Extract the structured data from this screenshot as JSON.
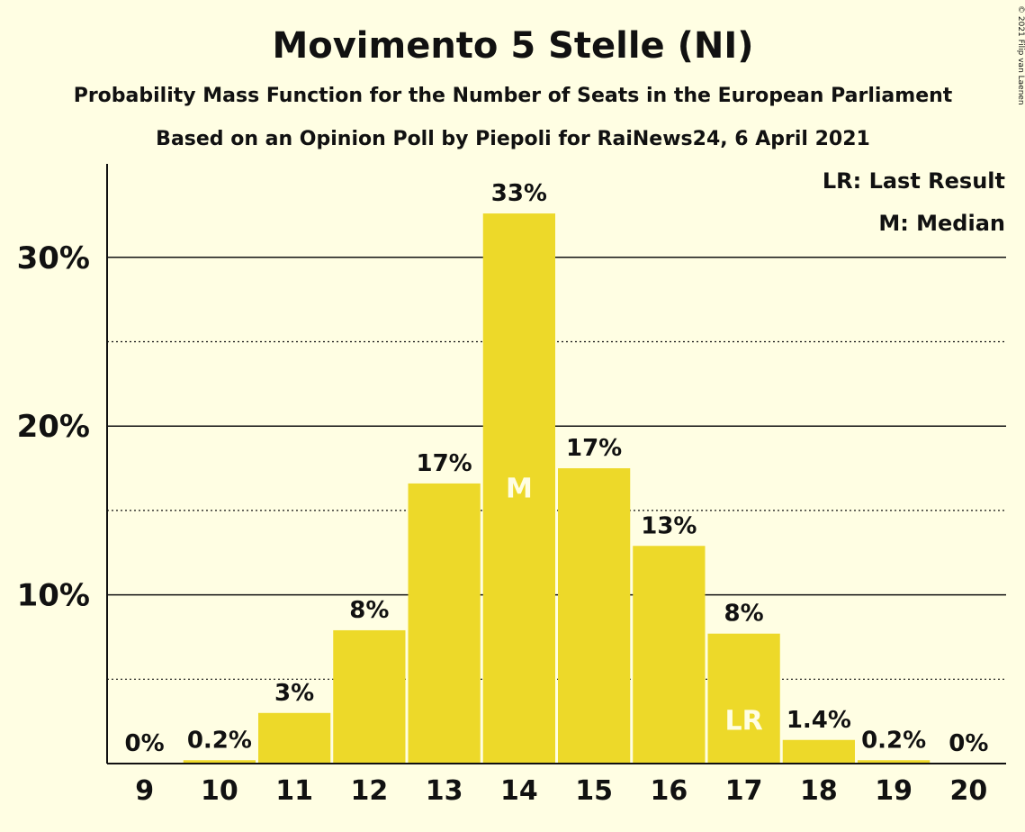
{
  "chart_data": {
    "type": "bar",
    "title": "Movimento 5 Stelle (NI)",
    "subtitle": "Probability Mass Function for the Number of Seats in the European Parliament",
    "subtitle2": "Based on an Opinion Poll by Piepoli for RaiNews24, 6 April 2021",
    "copyright": "© 2021 Filip van Laenen",
    "legend": [
      "LR: Last Result",
      "M: Median"
    ],
    "legend_position": "top-right",
    "categories": [
      "9",
      "10",
      "11",
      "12",
      "13",
      "14",
      "15",
      "16",
      "17",
      "18",
      "19",
      "20"
    ],
    "values": [
      0,
      0.2,
      3.0,
      7.9,
      16.6,
      32.6,
      17.5,
      12.9,
      7.7,
      1.4,
      0.2,
      0
    ],
    "data_labels": [
      "0%",
      "0.2%",
      "3%",
      "8%",
      "17%",
      "33%",
      "17%",
      "13%",
      "8%",
      "1.4%",
      "0.2%",
      "0%"
    ],
    "bar_annotations": [
      {
        "category": "14",
        "text": "M"
      },
      {
        "category": "17",
        "text": "LR"
      }
    ],
    "y_ticks": [
      10,
      20,
      30
    ],
    "y_tick_labels": [
      "10%",
      "20%",
      "30%"
    ],
    "y_minor_ticks": [
      5,
      15,
      25
    ],
    "ylim": [
      0,
      35.5
    ],
    "grid": true,
    "colors": {
      "bar": "#EDD929",
      "background": "#FFFEE3",
      "text": "#111111",
      "bar_annotation": "#FFFEE3"
    }
  }
}
